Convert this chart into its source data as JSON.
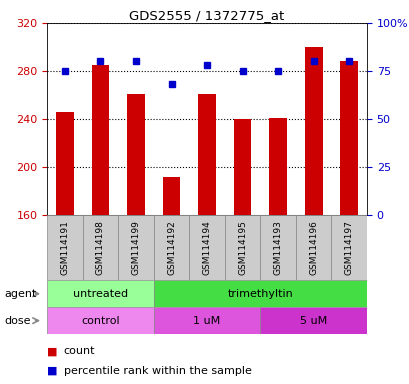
{
  "title": "GDS2555 / 1372775_at",
  "samples": [
    "GSM114191",
    "GSM114198",
    "GSM114199",
    "GSM114192",
    "GSM114194",
    "GSM114195",
    "GSM114193",
    "GSM114196",
    "GSM114197"
  ],
  "counts": [
    246,
    285,
    261,
    192,
    261,
    240,
    241,
    300,
    288
  ],
  "percentiles": [
    75,
    80,
    80,
    68,
    78,
    75,
    75,
    80,
    80
  ],
  "ylim_left": [
    160,
    320
  ],
  "ylim_right": [
    0,
    100
  ],
  "yticks_left": [
    160,
    200,
    240,
    280,
    320
  ],
  "yticks_right": [
    0,
    25,
    50,
    75,
    100
  ],
  "ytick_labels_right": [
    "0",
    "25",
    "50",
    "75",
    "100%"
  ],
  "bar_color": "#cc0000",
  "dot_color": "#0000cc",
  "agent_groups": [
    {
      "label": "untreated",
      "span": [
        0,
        3
      ],
      "color": "#99ff99"
    },
    {
      "label": "trimethyltin",
      "span": [
        3,
        9
      ],
      "color": "#44dd44"
    }
  ],
  "dose_groups": [
    {
      "label": "control",
      "span": [
        0,
        3
      ],
      "color": "#ee88ee"
    },
    {
      "label": "1 uM",
      "span": [
        3,
        6
      ],
      "color": "#dd55dd"
    },
    {
      "label": "5 uM",
      "span": [
        6,
        9
      ],
      "color": "#cc33cc"
    }
  ],
  "legend_count_label": "count",
  "legend_pct_label": "percentile rank within the sample",
  "agent_label": "agent",
  "dose_label": "dose",
  "bar_width": 0.5,
  "background_color": "#ffffff",
  "sample_box_color": "#cccccc"
}
